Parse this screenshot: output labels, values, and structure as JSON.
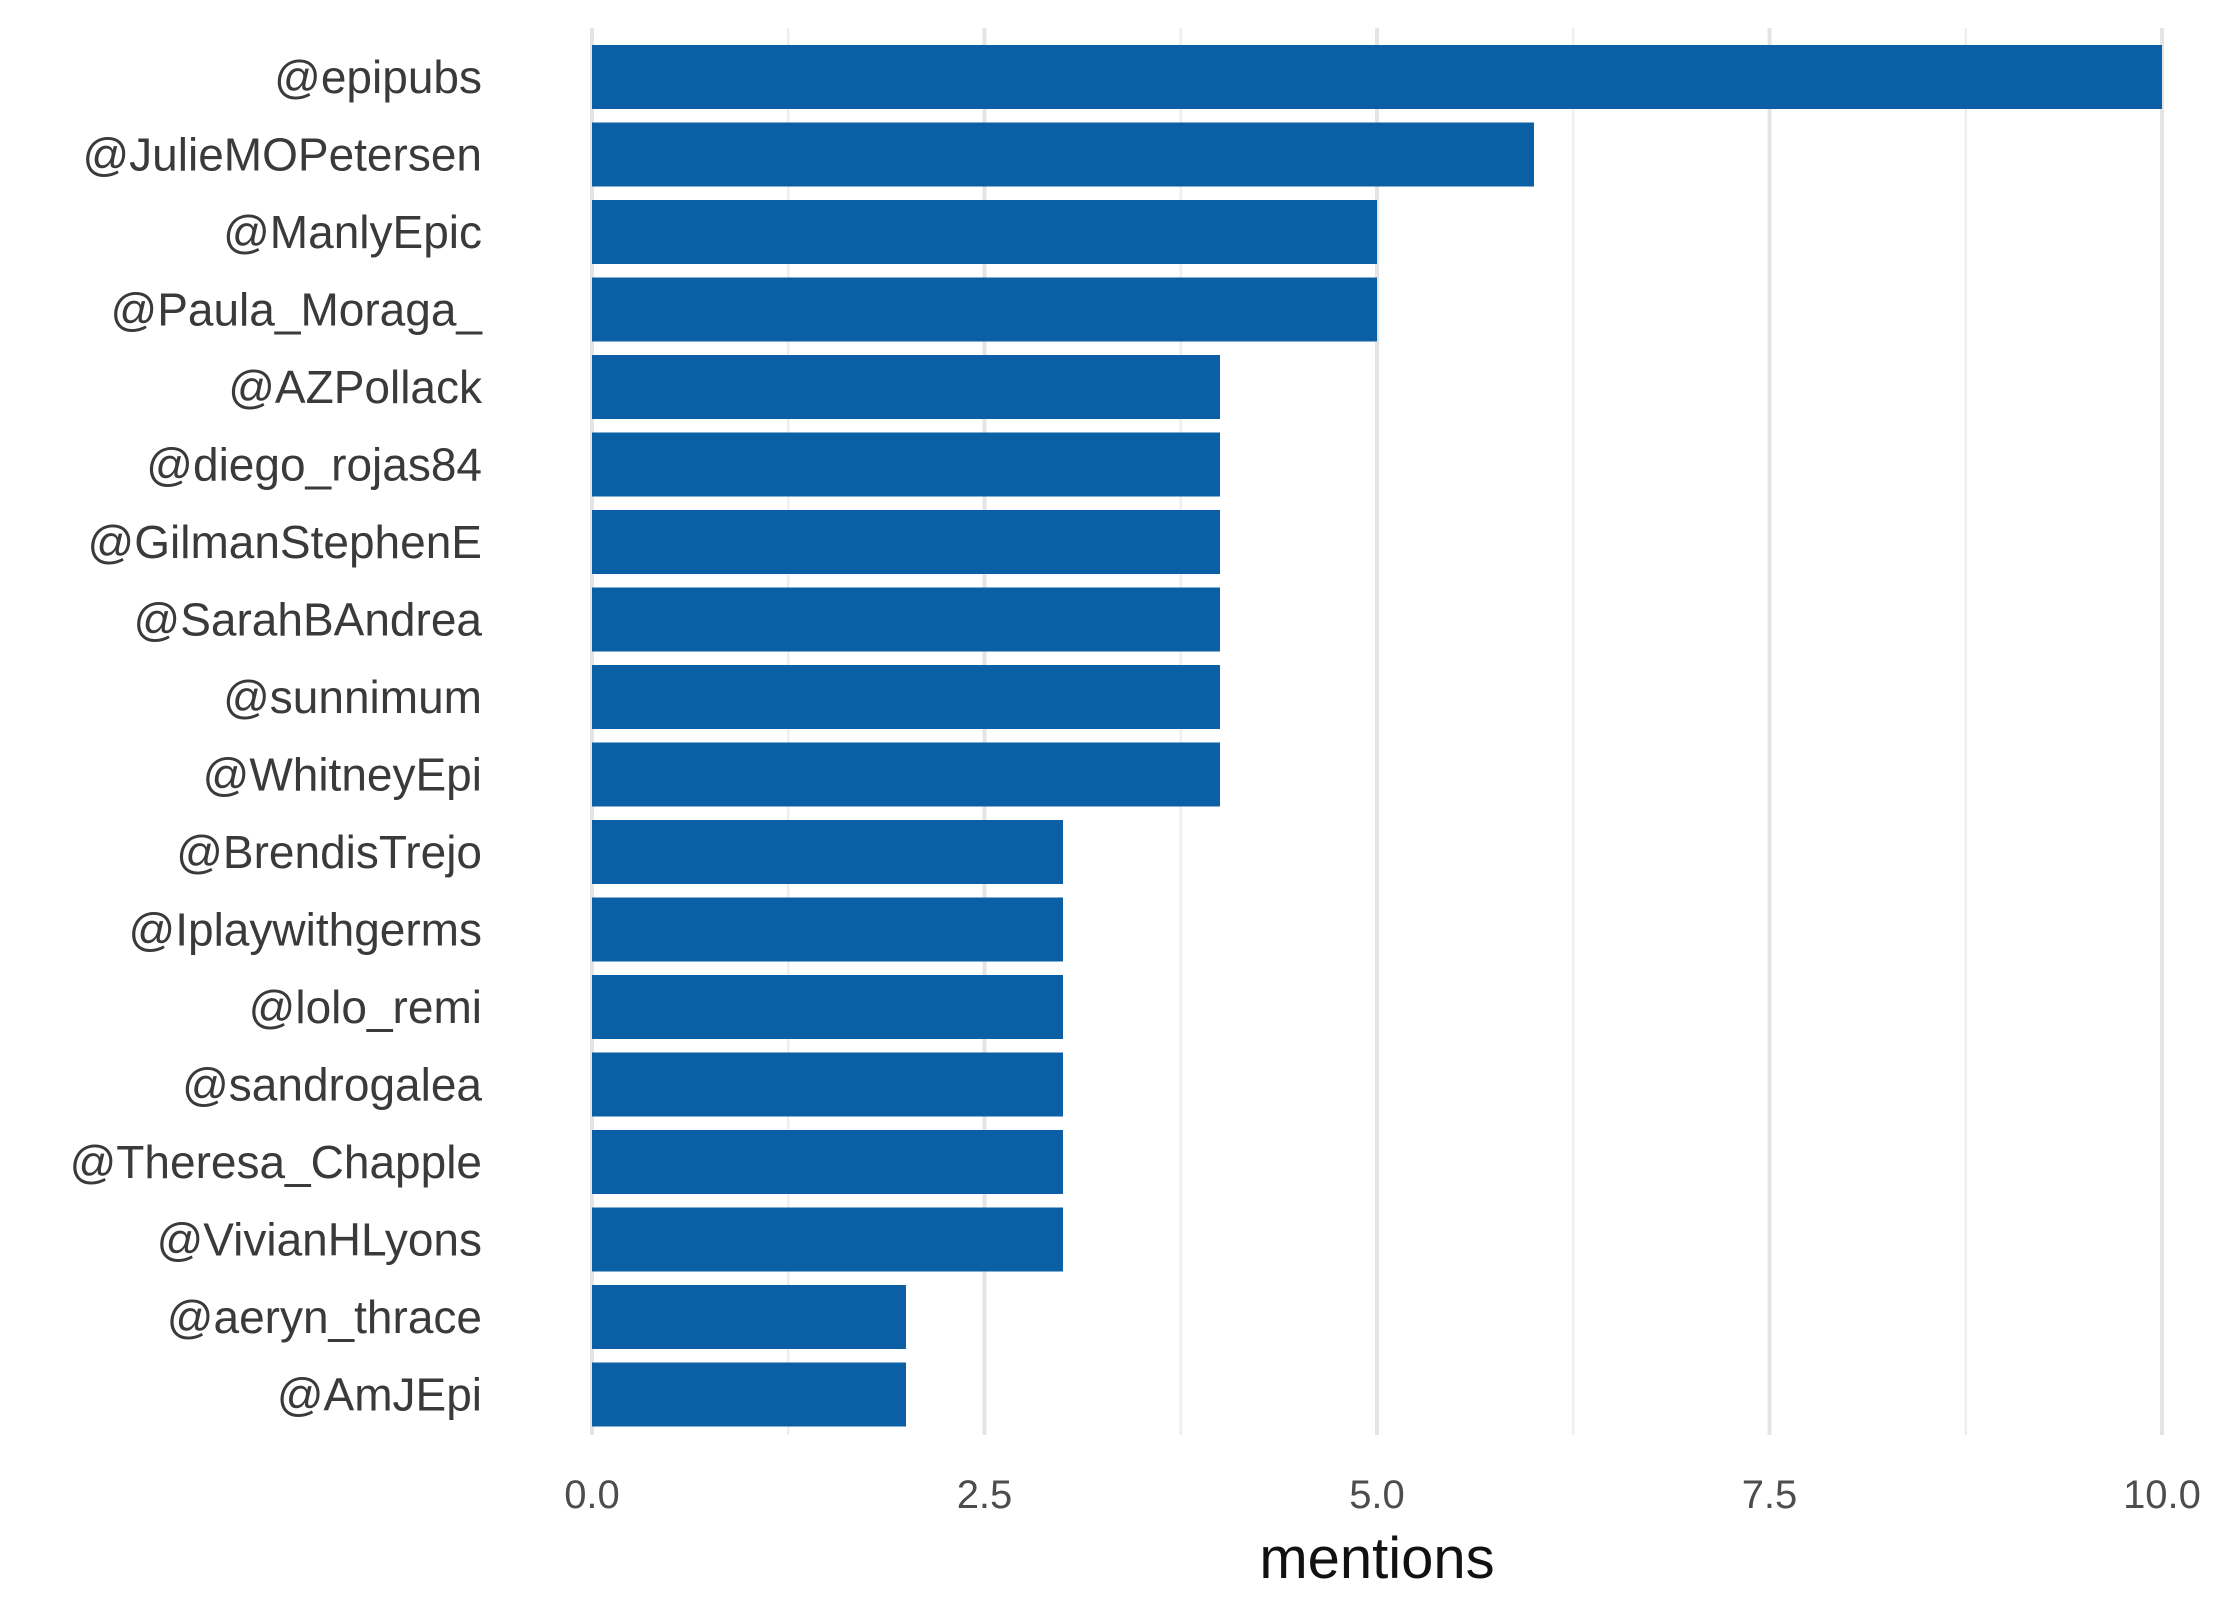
{
  "chart_data": {
    "type": "bar",
    "orientation": "horizontal",
    "title": "",
    "xlabel": "mentions",
    "ylabel": "",
    "xlim": [
      0,
      10
    ],
    "x_ticks": [
      0,
      2.5,
      5,
      7.5,
      10
    ],
    "x_tick_labels": [
      "0.0",
      "2.5",
      "5.0",
      "7.5",
      "10.0"
    ],
    "grid": true,
    "legend": "none",
    "bar_color": "#0b5fa5",
    "categories": [
      "@epipubs",
      "@JulieMOPetersen",
      "@ManlyEpic",
      "@Paula_Moraga_",
      "@AZPollack",
      "@diego_rojas84",
      "@GilmanStephenE",
      "@SarahBAndrea",
      "@sunnimum",
      "@WhitneyEpi",
      "@BrendisTrejo",
      "@Iplaywithgerms",
      "@lolo_remi",
      "@sandrogalea",
      "@Theresa_Chapple",
      "@VivianHLyons",
      "@aeryn_thrace",
      "@AmJEpi"
    ],
    "values": [
      10,
      6,
      5,
      5,
      4,
      4,
      4,
      4,
      4,
      4,
      3,
      3,
      3,
      3,
      3,
      3,
      2,
      2
    ]
  }
}
